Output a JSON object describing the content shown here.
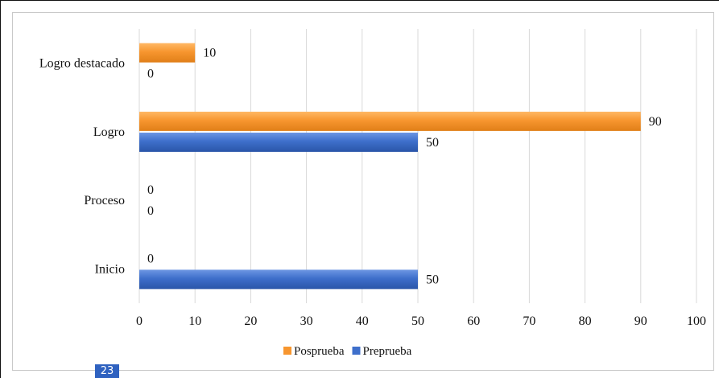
{
  "chart_data": {
    "type": "bar",
    "orientation": "horizontal",
    "categories": [
      "Logro destacado",
      "Logro",
      "Proceso",
      "Inicio"
    ],
    "series": [
      {
        "name": "Posprueba",
        "values": [
          10,
          90,
          0,
          0
        ],
        "color": "#f7962f"
      },
      {
        "name": "Preprueba",
        "values": [
          0,
          50,
          0,
          50
        ],
        "color": "#3e6fcb"
      }
    ],
    "xlim": [
      0,
      100
    ],
    "xticks": [
      "0",
      "10",
      "20",
      "30",
      "40",
      "50",
      "60",
      "70",
      "80",
      "90",
      "100"
    ],
    "grid": true,
    "legend": "bottom",
    "title": "",
    "xlabel": "",
    "ylabel": ""
  },
  "page_number": "23"
}
